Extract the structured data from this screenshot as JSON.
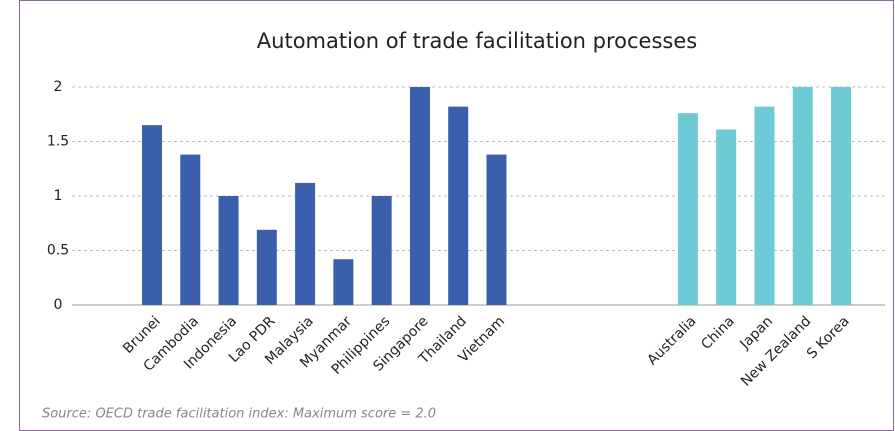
{
  "chart_data": {
    "type": "bar",
    "title": "Automation of trade facilitation processes",
    "categories": [
      "Brunei",
      "Cambodia",
      "Indonesia",
      "Lao PDR",
      "Malaysia",
      "Myanmar",
      "Philippines",
      "Singapore",
      "Thailand",
      "Vietnam",
      null,
      null,
      null,
      null,
      "Australia",
      "China",
      "Japan",
      "New Zealand",
      "S Korea"
    ],
    "values": [
      1.65,
      1.38,
      1.0,
      0.69,
      1.12,
      0.42,
      1.0,
      2.0,
      1.82,
      1.38,
      null,
      null,
      null,
      null,
      1.76,
      1.61,
      1.82,
      2.0,
      2.0
    ],
    "colors": [
      "#3a5fad",
      "#3a5fad",
      "#3a5fad",
      "#3a5fad",
      "#3a5fad",
      "#3a5fad",
      "#3a5fad",
      "#3a5fad",
      "#3a5fad",
      "#3a5fad",
      null,
      null,
      null,
      null,
      "#6ecad6",
      "#6ecad6",
      "#6ecad6",
      "#6ecad6",
      "#6ecad6"
    ],
    "ylim": [
      0,
      2
    ],
    "yticks": [
      0,
      0.5,
      1,
      1.5,
      2
    ],
    "grid": true,
    "source": "Source: OECD trade facilitation index: Maximum score = 2.0"
  }
}
